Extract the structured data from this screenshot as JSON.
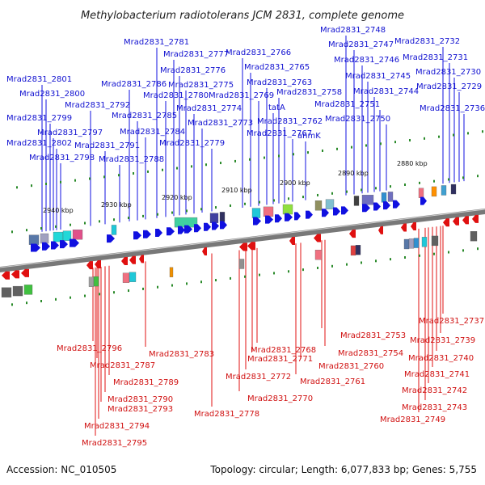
{
  "title": "Methylobacterium radiotolerans JCM 2831, complete genome",
  "footer": {
    "accession": "Accession: NC_010505",
    "summary": "Topology: circular; Length: 6,077,833 bp; Genes: 5,755"
  },
  "colors": {
    "forward_strand": "#1010e0",
    "reverse_strand": "#e01010",
    "backbone": "#777777"
  },
  "kbp_labels": [
    "2940 kbp",
    "2930 kbp",
    "2920 kbp",
    "2910 kbp",
    "2900 kbp",
    "2890 kbp",
    "2880 kbp"
  ],
  "forward_genes": [
    "Mrad2831_2801",
    "Mrad2831_2800",
    "Mrad2831_2799",
    "Mrad2831_2797",
    "Mrad2831_2802",
    "Mrad2831_2798",
    "Mrad2831_2792",
    "Mrad2831_2791",
    "Mrad2831_2788",
    "Mrad2831_2786",
    "Mrad2831_2785",
    "Mrad2831_2784",
    "Mrad2831_2781",
    "Mrad2831_2780",
    "Mrad2831_2777",
    "Mrad2831_2776",
    "Mrad2831_2775",
    "Mrad2831_2774",
    "Mrad2831_2773",
    "Mrad2831_2779",
    "Mrad2831_2766",
    "Mrad2831_2765",
    "Mrad2831_2769",
    "Mrad2831_2763",
    "tatA",
    "Mrad2831_2758",
    "Mrad2831_2762",
    "Mrad2831_2767",
    "anmK",
    "Mrad2831_2748",
    "Mrad2831_2747",
    "Mrad2831_2746",
    "Mrad2831_2745",
    "Mrad2831_2744",
    "Mrad2831_2751",
    "Mrad2831_2750",
    "Mrad2831_2732",
    "Mrad2831_2731",
    "Mrad2831_2730",
    "Mrad2831_2729",
    "Mrad2831_2736"
  ],
  "reverse_genes": [
    "Mrad2831_2796",
    "Mrad2831_2787",
    "Mrad2831_2783",
    "Mrad2831_2789",
    "Mrad2831_2790",
    "Mrad2831_2793",
    "Mrad2831_2794",
    "Mrad2831_2795",
    "Mrad2831_2778",
    "Mrad2831_2768",
    "Mrad2831_2771",
    "Mrad2831_2772",
    "Mrad2831_2770",
    "Mrad2831_2760",
    "Mrad2831_2761",
    "Mrad2831_2753",
    "Mrad2831_2754",
    "Mrad2831_2737",
    "Mrad2831_2739",
    "Mrad2831_2740",
    "Mrad2831_2741",
    "Mrad2831_2742",
    "Mrad2831_2743",
    "Mrad2831_2749"
  ]
}
